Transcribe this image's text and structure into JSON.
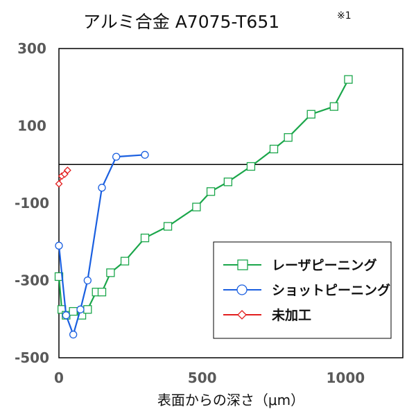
{
  "title": "アルミ合金 A7075-T651",
  "title_note": "※1",
  "chart_data": {
    "type": "line",
    "title": "アルミ合金 A7075-T651",
    "xlabel": "表面からの深さ（μm）",
    "ylabel": "",
    "xlim": [
      0,
      1200
    ],
    "ylim": [
      -500,
      300
    ],
    "xticks": [
      0,
      500,
      1000
    ],
    "xtick_labels": [
      "0",
      "500",
      "1000"
    ],
    "yticks": [
      300,
      100,
      -100,
      -300,
      -500
    ],
    "ytick_labels": [
      "300",
      "100",
      "-100",
      "-300",
      "-500"
    ],
    "grid": false,
    "reference_line_y": 0,
    "legend": {
      "position": "bottom-right"
    },
    "series": [
      {
        "name": "レーザピーニング",
        "color": "#1aa64a",
        "marker": "square",
        "points": [
          [
            0,
            -290
          ],
          [
            10,
            -375
          ],
          [
            25,
            -390
          ],
          [
            50,
            -380
          ],
          [
            80,
            -390
          ],
          [
            100,
            -375
          ],
          [
            130,
            -330
          ],
          [
            150,
            -330
          ],
          [
            180,
            -280
          ],
          [
            230,
            -250
          ],
          [
            300,
            -190
          ],
          [
            380,
            -160
          ],
          [
            480,
            -110
          ],
          [
            530,
            -70
          ],
          [
            590,
            -45
          ],
          [
            670,
            -5
          ],
          [
            750,
            40
          ],
          [
            800,
            70
          ],
          [
            880,
            130
          ],
          [
            960,
            150
          ],
          [
            1010,
            220
          ]
        ]
      },
      {
        "name": "ショットピーニング",
        "color": "#1a5fe0",
        "marker": "circle",
        "points": [
          [
            0,
            -210
          ],
          [
            25,
            -390
          ],
          [
            50,
            -440
          ],
          [
            75,
            -375
          ],
          [
            100,
            -300
          ],
          [
            150,
            -60
          ],
          [
            200,
            20
          ],
          [
            300,
            25
          ]
        ]
      },
      {
        "name": "未加工",
        "color": "#e21e1e",
        "marker": "diamond",
        "points": [
          [
            0,
            -50
          ],
          [
            10,
            -30
          ],
          [
            20,
            -25
          ],
          [
            30,
            -15
          ]
        ]
      }
    ]
  }
}
